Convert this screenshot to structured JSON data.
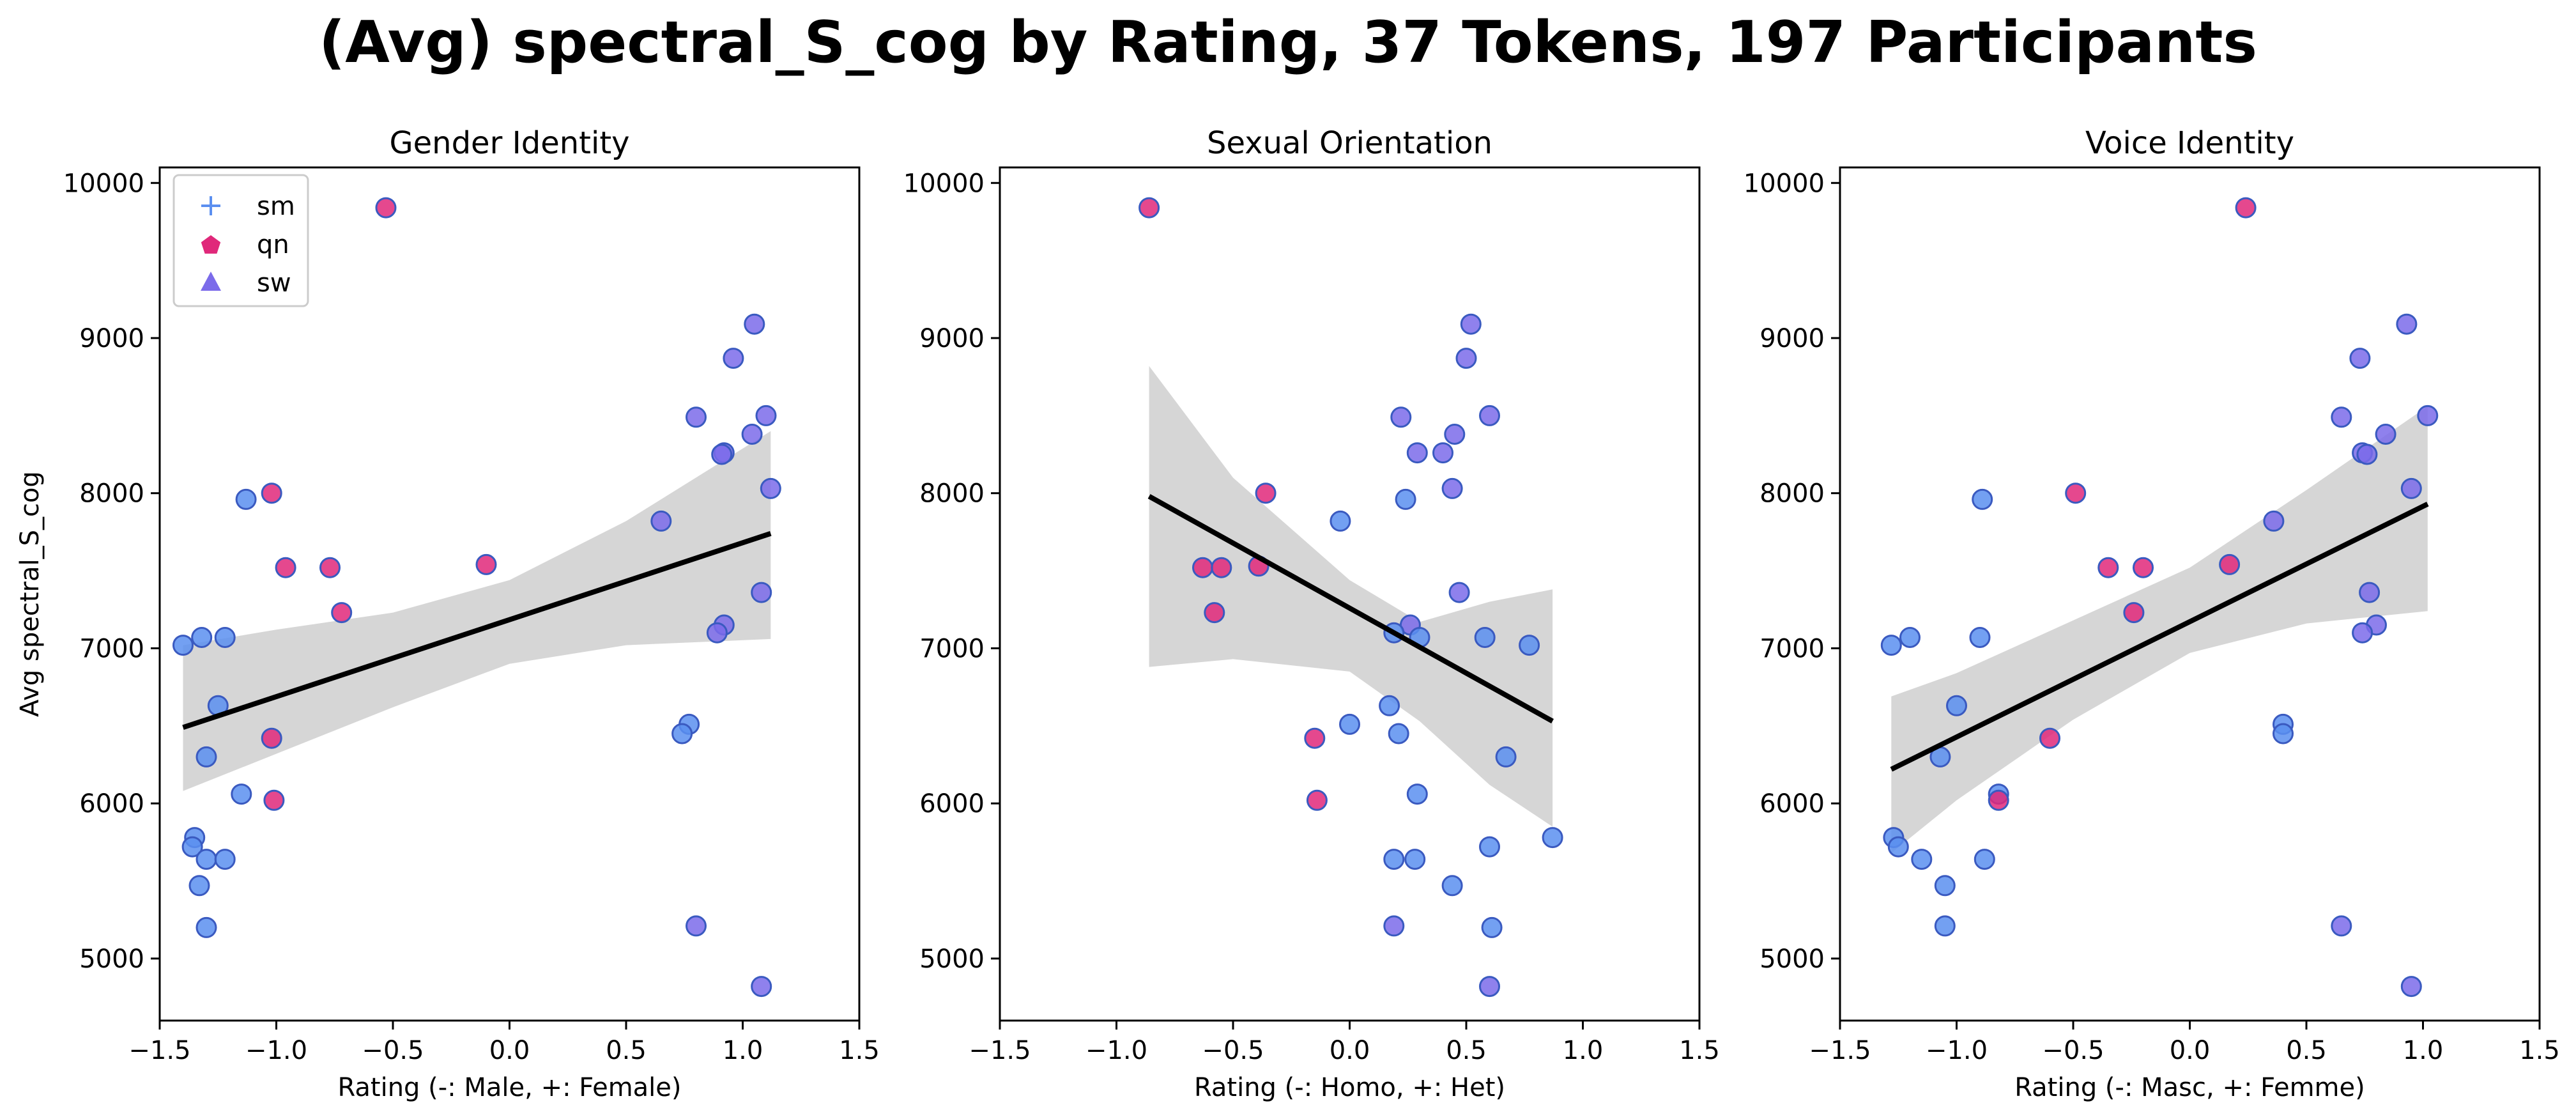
{
  "figure": {
    "title": "(Avg) spectral_S_cog by Rating, 37 Tokens, 197 Participants"
  },
  "colors": {
    "sm": "#5B8FF0",
    "qn": "#E0287A",
    "sw": "#7B6BEA",
    "fit_line": "#000000",
    "ci_band": "#D6D6D6"
  },
  "chart_data": [
    {
      "type": "scatter",
      "title": "Gender Identity",
      "xlabel": "Rating (-: Male, +: Female)",
      "ylabel": "Avg spectral_S_cog",
      "xlim": [
        -1.5,
        1.5
      ],
      "ylim": [
        4600,
        10100
      ],
      "xticks": [
        -1.5,
        -1.0,
        -0.5,
        0.0,
        0.5,
        1.0,
        1.5
      ],
      "xtick_labels": [
        "−1.5",
        "−1.0",
        "−0.5",
        "0.0",
        "0.5",
        "1.0",
        "1.5"
      ],
      "yticks": [
        5000,
        6000,
        7000,
        8000,
        9000,
        10000
      ],
      "ytick_labels": [
        "5000",
        "6000",
        "7000",
        "8000",
        "9000",
        "10000"
      ],
      "grid": false,
      "legend": {
        "position": "top-left",
        "entries": [
          {
            "label": "sm",
            "marker": "plus",
            "color": "#5B8FF0"
          },
          {
            "label": "qn",
            "marker": "pentagon",
            "color": "#E0287A"
          },
          {
            "label": "sw",
            "marker": "triangle",
            "color": "#7B6BEA"
          }
        ]
      },
      "fit": {
        "x": [
          -1.4,
          1.12
        ],
        "y": [
          6490,
          7740
        ]
      },
      "ci_band": {
        "x": [
          -1.4,
          -1.0,
          -0.5,
          0.0,
          0.5,
          1.12
        ],
        "upper": [
          7020,
          7120,
          7230,
          7440,
          7820,
          8400
        ],
        "lower": [
          6080,
          6320,
          6620,
          6900,
          7020,
          7060
        ]
      },
      "points": [
        {
          "x": -1.4,
          "y": 7020,
          "group": "sm"
        },
        {
          "x": -1.32,
          "y": 7070,
          "group": "sm"
        },
        {
          "x": -1.22,
          "y": 7070,
          "group": "sm"
        },
        {
          "x": -1.13,
          "y": 7960,
          "group": "sm"
        },
        {
          "x": -1.25,
          "y": 6630,
          "group": "sm"
        },
        {
          "x": -1.3,
          "y": 6300,
          "group": "sm"
        },
        {
          "x": -1.15,
          "y": 6060,
          "group": "sm"
        },
        {
          "x": -1.35,
          "y": 5780,
          "group": "sm"
        },
        {
          "x": -1.36,
          "y": 5720,
          "group": "sm"
        },
        {
          "x": -1.3,
          "y": 5640,
          "group": "sm"
        },
        {
          "x": -1.22,
          "y": 5640,
          "group": "sm"
        },
        {
          "x": -1.33,
          "y": 5470,
          "group": "sm"
        },
        {
          "x": -1.3,
          "y": 5200,
          "group": "sm"
        },
        {
          "x": -0.53,
          "y": 9840,
          "group": "qn"
        },
        {
          "x": -1.02,
          "y": 8000,
          "group": "qn"
        },
        {
          "x": -0.96,
          "y": 7520,
          "group": "qn"
        },
        {
          "x": -0.77,
          "y": 7520,
          "group": "qn"
        },
        {
          "x": -0.72,
          "y": 7230,
          "group": "qn"
        },
        {
          "x": -0.1,
          "y": 7540,
          "group": "qn"
        },
        {
          "x": -1.02,
          "y": 6420,
          "group": "qn"
        },
        {
          "x": -1.01,
          "y": 6020,
          "group": "qn"
        },
        {
          "x": 1.05,
          "y": 9090,
          "group": "sw"
        },
        {
          "x": 0.96,
          "y": 8870,
          "group": "sw"
        },
        {
          "x": 1.1,
          "y": 8500,
          "group": "sw"
        },
        {
          "x": 0.8,
          "y": 8490,
          "group": "sw"
        },
        {
          "x": 1.04,
          "y": 8380,
          "group": "sw"
        },
        {
          "x": 0.92,
          "y": 8260,
          "group": "sw"
        },
        {
          "x": 0.91,
          "y": 8250,
          "group": "sw"
        },
        {
          "x": 1.12,
          "y": 8030,
          "group": "sw"
        },
        {
          "x": 0.65,
          "y": 7820,
          "group": "sw"
        },
        {
          "x": 1.08,
          "y": 7360,
          "group": "sw"
        },
        {
          "x": 0.92,
          "y": 7150,
          "group": "sw"
        },
        {
          "x": 0.89,
          "y": 7100,
          "group": "sw"
        },
        {
          "x": 0.77,
          "y": 6510,
          "group": "sm"
        },
        {
          "x": 0.74,
          "y": 6450,
          "group": "sm"
        },
        {
          "x": 0.8,
          "y": 5210,
          "group": "sw"
        },
        {
          "x": 1.08,
          "y": 4820,
          "group": "sw"
        }
      ]
    },
    {
      "type": "scatter",
      "title": "Sexual Orientation",
      "xlabel": "Rating (-: Homo, +: Het)",
      "ylabel": "",
      "xlim": [
        -1.5,
        1.5
      ],
      "ylim": [
        4600,
        10100
      ],
      "xticks": [
        -1.5,
        -1.0,
        -0.5,
        0.0,
        0.5,
        1.0,
        1.5
      ],
      "xtick_labels": [
        "−1.5",
        "−1.0",
        "−0.5",
        "0.0",
        "0.5",
        "1.0",
        "1.5"
      ],
      "yticks": [
        5000,
        6000,
        7000,
        8000,
        9000,
        10000
      ],
      "ytick_labels": [
        "5000",
        "6000",
        "7000",
        "8000",
        "9000",
        "10000"
      ],
      "grid": false,
      "fit": {
        "x": [
          -0.86,
          0.87
        ],
        "y": [
          7980,
          6530
        ]
      },
      "ci_band": {
        "x": [
          -0.86,
          -0.5,
          0.0,
          0.3,
          0.6,
          0.87
        ],
        "upper": [
          8820,
          8100,
          7440,
          7170,
          7300,
          7380
        ],
        "lower": [
          6880,
          6930,
          6850,
          6530,
          6120,
          5850
        ]
      },
      "points": [
        {
          "x": -0.86,
          "y": 9840,
          "group": "qn"
        },
        {
          "x": -0.36,
          "y": 8000,
          "group": "qn"
        },
        {
          "x": -0.63,
          "y": 7520,
          "group": "qn"
        },
        {
          "x": -0.55,
          "y": 7520,
          "group": "qn"
        },
        {
          "x": -0.39,
          "y": 7530,
          "group": "qn"
        },
        {
          "x": -0.58,
          "y": 7230,
          "group": "qn"
        },
        {
          "x": -0.15,
          "y": 6420,
          "group": "qn"
        },
        {
          "x": -0.14,
          "y": 6020,
          "group": "qn"
        },
        {
          "x": 0.52,
          "y": 9090,
          "group": "sw"
        },
        {
          "x": 0.5,
          "y": 8870,
          "group": "sw"
        },
        {
          "x": 0.22,
          "y": 8490,
          "group": "sw"
        },
        {
          "x": 0.6,
          "y": 8500,
          "group": "sw"
        },
        {
          "x": 0.45,
          "y": 8380,
          "group": "sw"
        },
        {
          "x": 0.29,
          "y": 8260,
          "group": "sw"
        },
        {
          "x": 0.4,
          "y": 8260,
          "group": "sw"
        },
        {
          "x": 0.44,
          "y": 8030,
          "group": "sw"
        },
        {
          "x": 0.24,
          "y": 7960,
          "group": "sm"
        },
        {
          "x": -0.04,
          "y": 7820,
          "group": "sm"
        },
        {
          "x": 0.47,
          "y": 7360,
          "group": "sw"
        },
        {
          "x": 0.26,
          "y": 7150,
          "group": "sw"
        },
        {
          "x": 0.19,
          "y": 7100,
          "group": "sm"
        },
        {
          "x": 0.3,
          "y": 7070,
          "group": "sm"
        },
        {
          "x": 0.58,
          "y": 7070,
          "group": "sm"
        },
        {
          "x": 0.77,
          "y": 7020,
          "group": "sm"
        },
        {
          "x": 0.17,
          "y": 6630,
          "group": "sm"
        },
        {
          "x": 0.0,
          "y": 6510,
          "group": "sm"
        },
        {
          "x": 0.21,
          "y": 6450,
          "group": "sm"
        },
        {
          "x": 0.67,
          "y": 6300,
          "group": "sm"
        },
        {
          "x": 0.29,
          "y": 6060,
          "group": "sm"
        },
        {
          "x": 0.87,
          "y": 5780,
          "group": "sm"
        },
        {
          "x": 0.6,
          "y": 5720,
          "group": "sm"
        },
        {
          "x": 0.19,
          "y": 5640,
          "group": "sm"
        },
        {
          "x": 0.28,
          "y": 5640,
          "group": "sm"
        },
        {
          "x": 0.44,
          "y": 5470,
          "group": "sm"
        },
        {
          "x": 0.19,
          "y": 5210,
          "group": "sw"
        },
        {
          "x": 0.61,
          "y": 5200,
          "group": "sm"
        },
        {
          "x": 0.6,
          "y": 4820,
          "group": "sw"
        }
      ]
    },
    {
      "type": "scatter",
      "title": "Voice Identity",
      "xlabel": "Rating (-: Masc, +: Femme)",
      "ylabel": "",
      "xlim": [
        -1.5,
        1.5
      ],
      "ylim": [
        4600,
        10100
      ],
      "xticks": [
        -1.5,
        -1.0,
        -0.5,
        0.0,
        0.5,
        1.0,
        1.5
      ],
      "xtick_labels": [
        "−1.5",
        "−1.0",
        "−0.5",
        "0.0",
        "0.5",
        "1.0",
        "1.5"
      ],
      "yticks": [
        5000,
        6000,
        7000,
        8000,
        9000,
        10000
      ],
      "ytick_labels": [
        "5000",
        "6000",
        "7000",
        "8000",
        "9000",
        "10000"
      ],
      "grid": false,
      "fit": {
        "x": [
          -1.28,
          1.02
        ],
        "y": [
          6220,
          7930
        ]
      },
      "ci_band": {
        "x": [
          -1.28,
          -1.0,
          -0.5,
          0.0,
          0.5,
          1.02
        ],
        "upper": [
          6690,
          6840,
          7180,
          7520,
          8020,
          8560
        ],
        "lower": [
          5680,
          6020,
          6540,
          6970,
          7160,
          7240
        ]
      },
      "points": [
        {
          "x": -1.28,
          "y": 7020,
          "group": "sm"
        },
        {
          "x": -1.2,
          "y": 7070,
          "group": "sm"
        },
        {
          "x": -0.9,
          "y": 7070,
          "group": "sm"
        },
        {
          "x": -0.89,
          "y": 7960,
          "group": "sm"
        },
        {
          "x": -1.0,
          "y": 6630,
          "group": "sm"
        },
        {
          "x": -1.07,
          "y": 6300,
          "group": "sm"
        },
        {
          "x": -0.82,
          "y": 6060,
          "group": "sm"
        },
        {
          "x": -1.27,
          "y": 5780,
          "group": "sm"
        },
        {
          "x": -1.25,
          "y": 5720,
          "group": "sm"
        },
        {
          "x": -1.15,
          "y": 5640,
          "group": "sm"
        },
        {
          "x": -0.88,
          "y": 5640,
          "group": "sm"
        },
        {
          "x": -1.05,
          "y": 5470,
          "group": "sm"
        },
        {
          "x": -1.05,
          "y": 5210,
          "group": "sm"
        },
        {
          "x": 0.24,
          "y": 9840,
          "group": "qn"
        },
        {
          "x": -0.49,
          "y": 8000,
          "group": "qn"
        },
        {
          "x": -0.35,
          "y": 7520,
          "group": "qn"
        },
        {
          "x": -0.2,
          "y": 7520,
          "group": "qn"
        },
        {
          "x": 0.17,
          "y": 7540,
          "group": "qn"
        },
        {
          "x": -0.24,
          "y": 7230,
          "group": "qn"
        },
        {
          "x": -0.6,
          "y": 6420,
          "group": "qn"
        },
        {
          "x": -0.82,
          "y": 6020,
          "group": "qn"
        },
        {
          "x": 0.93,
          "y": 9090,
          "group": "sw"
        },
        {
          "x": 0.73,
          "y": 8870,
          "group": "sw"
        },
        {
          "x": 1.02,
          "y": 8500,
          "group": "sw"
        },
        {
          "x": 0.65,
          "y": 8490,
          "group": "sw"
        },
        {
          "x": 0.84,
          "y": 8380,
          "group": "sw"
        },
        {
          "x": 0.74,
          "y": 8260,
          "group": "sw"
        },
        {
          "x": 0.76,
          "y": 8250,
          "group": "sw"
        },
        {
          "x": 0.95,
          "y": 8030,
          "group": "sw"
        },
        {
          "x": 0.36,
          "y": 7820,
          "group": "sw"
        },
        {
          "x": 0.77,
          "y": 7360,
          "group": "sw"
        },
        {
          "x": 0.8,
          "y": 7150,
          "group": "sw"
        },
        {
          "x": 0.74,
          "y": 7100,
          "group": "sw"
        },
        {
          "x": 0.4,
          "y": 6510,
          "group": "sm"
        },
        {
          "x": 0.4,
          "y": 6450,
          "group": "sm"
        },
        {
          "x": 0.65,
          "y": 5210,
          "group": "sw"
        },
        {
          "x": 0.95,
          "y": 4820,
          "group": "sw"
        }
      ]
    }
  ]
}
